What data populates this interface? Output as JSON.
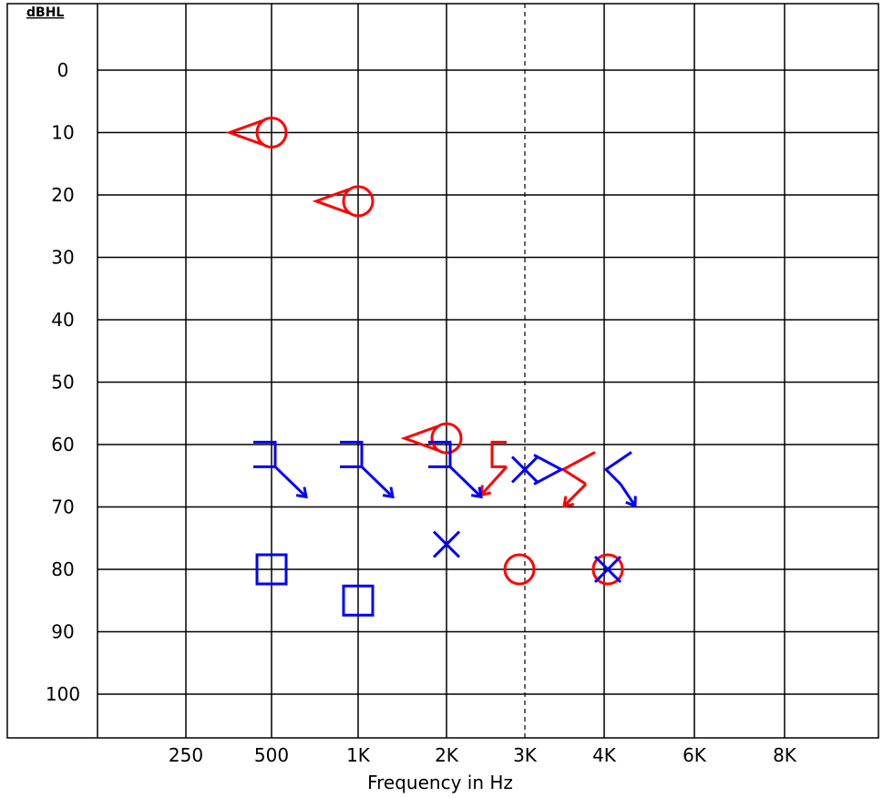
{
  "chart_data": {
    "type": "scatter",
    "title": "",
    "xlabel": "Frequency in Hz",
    "ylabel": "dBHL",
    "ylim": [
      -10,
      110
    ],
    "yticks": [
      "0",
      "10",
      "20",
      "30",
      "40",
      "50",
      "60",
      "70",
      "80",
      "90",
      "100"
    ],
    "xticks": [
      "250",
      "500",
      "1K",
      "2K",
      "3K",
      "4K",
      "6K",
      "8K"
    ],
    "grid": true,
    "reference_line": {
      "x": "3K",
      "style": "dashed"
    },
    "series": [
      {
        "color": "#ff0000",
        "marker": "circle",
        "points": [
          {
            "x": "500",
            "y": 10
          },
          {
            "x": "1K",
            "y": 21
          },
          {
            "x": "2K",
            "y": 59
          },
          {
            "x": "3K",
            "y": 80
          },
          {
            "x": "4K",
            "y": 80
          }
        ]
      },
      {
        "color": "#ff0000",
        "marker": "left-angle",
        "points": [
          {
            "x": "500",
            "y": 10
          },
          {
            "x": "1K",
            "y": 21
          },
          {
            "x": "2K",
            "y": 59
          }
        ]
      },
      {
        "color": "#ff0000",
        "marker": "left-bracket-arrow",
        "points": [
          {
            "x": "3K",
            "y": 64
          }
        ]
      },
      {
        "color": "#ff0000",
        "marker": "left-angle-arrow",
        "points": [
          {
            "x": "4K",
            "y": 64
          }
        ]
      },
      {
        "color": "#0000ff",
        "marker": "x",
        "points": [
          {
            "x": "2K",
            "y": 76
          },
          {
            "x": "3K",
            "y": 64
          },
          {
            "x": "4K",
            "y": 80
          }
        ]
      },
      {
        "color": "#0000ff",
        "marker": "square",
        "points": [
          {
            "x": "500",
            "y": 80
          },
          {
            "x": "1K",
            "y": 85
          }
        ]
      },
      {
        "color": "#0000ff",
        "marker": "right-bracket-arrow",
        "points": [
          {
            "x": "500",
            "y": 64
          },
          {
            "x": "1K",
            "y": 64
          },
          {
            "x": "2K",
            "y": 64
          }
        ]
      },
      {
        "color": "#0000ff",
        "marker": "right-angle",
        "points": [
          {
            "x": "3K",
            "y": 64
          }
        ]
      },
      {
        "color": "#0000ff",
        "marker": "right-angle-arrow",
        "points": [
          {
            "x": "4K",
            "y": 64
          }
        ]
      }
    ]
  }
}
